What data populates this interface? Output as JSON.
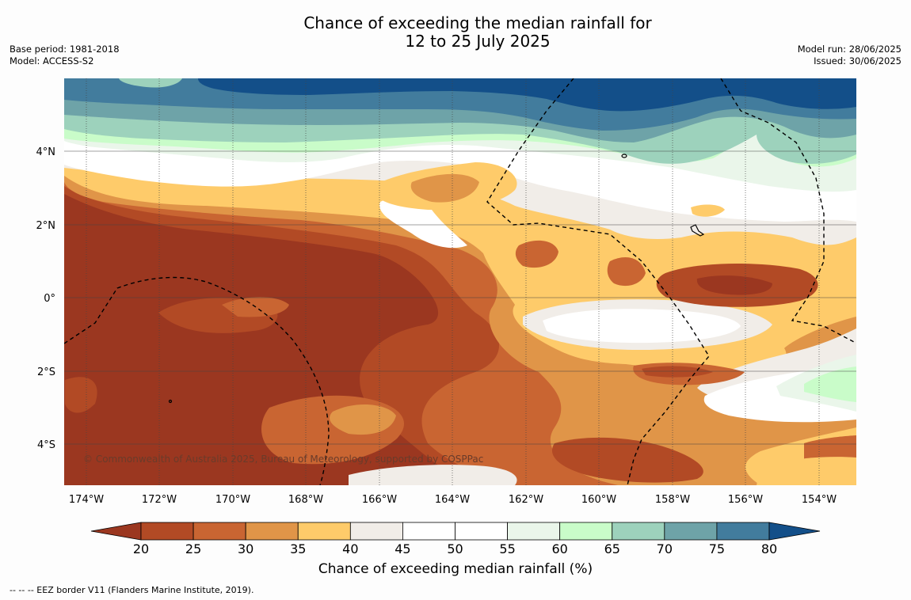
{
  "header": {
    "title_line1": "Chance of exceeding the median rainfall for",
    "title_line2": "12 to 25 July 2025",
    "base_period": "Base period: 1981-2018",
    "model": "Model: ACCESS-S2",
    "model_run": "Model run: 28/06/2025",
    "issued": "Issued: 30/06/2025"
  },
  "map": {
    "copyright": "© Commonwealth of Australia 2025, Bureau of Meteorology, supported by COSPPac",
    "lon_labels": [
      "174°W",
      "172°W",
      "170°W",
      "168°W",
      "166°W",
      "164°W",
      "162°W",
      "160°W",
      "158°W",
      "156°W",
      "154°W"
    ],
    "lat_labels": [
      "4°N",
      "2°N",
      "0°",
      "2°S",
      "4°S"
    ]
  },
  "colorbar": {
    "ticks": [
      "20",
      "25",
      "30",
      "35",
      "40",
      "45",
      "50",
      "55",
      "60",
      "65",
      "70",
      "75",
      "80"
    ],
    "colors": [
      "#9b3720",
      "#b24a25",
      "#c96532",
      "#e09548",
      "#fecb6a",
      "#f1ede8",
      "#ffffff",
      "#ffffff",
      "#eaf6ea",
      "#c9fcc9",
      "#9dd2bc",
      "#6ea3a8",
      "#427c9d",
      "#134f89"
    ],
    "title": "Chance of exceeding median rainfall (%)"
  },
  "footnote": "-- -- -- EEZ border V11 (Flanders Marine Institute, 2019)."
}
